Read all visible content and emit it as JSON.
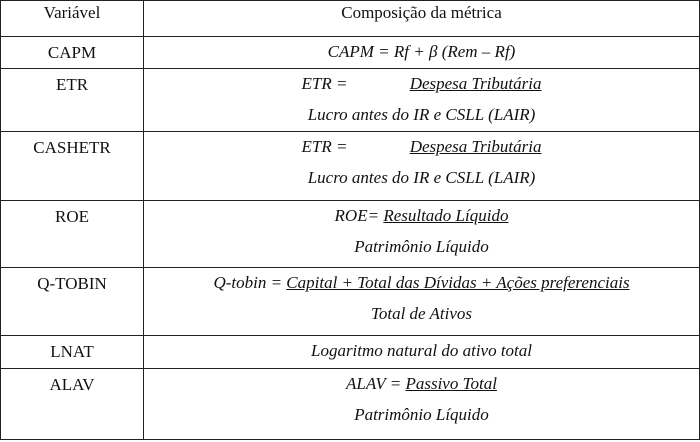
{
  "header": {
    "col1": "Variável",
    "col2": "Composição da métrica"
  },
  "rows": [
    {
      "variable": "CAPM",
      "formula": "CAPM = Rf + β (Rem – Rf)"
    },
    {
      "variable": "ETR",
      "lhs": "ETR = ",
      "numerator": "Despesa Tributária",
      "denominator": "Lucro antes do IR e CSLL (LAIR)"
    },
    {
      "variable": "CASHETR",
      "lhs": "ETR = ",
      "numerator": "Despesa Tributária",
      "denominator": "Lucro antes do IR e CSLL (LAIR)"
    },
    {
      "variable": "ROE",
      "lhs": "ROE= ",
      "numerator": "Resultado Líquido",
      "denominator": "Patrimônio Líquido"
    },
    {
      "variable": "Q-TOBIN",
      "lhs": "Q-tobin = ",
      "numerator": "Capital + Total das Dívidas + Ações preferenciais",
      "denominator": "Total de Ativos"
    },
    {
      "variable": "LNAT",
      "formula": "Logaritmo natural do ativo total"
    },
    {
      "variable": "ALAV",
      "lhs": "ALAV = ",
      "numerator": "Passivo Total",
      "denominator": "Patrimônio Líquido"
    }
  ]
}
